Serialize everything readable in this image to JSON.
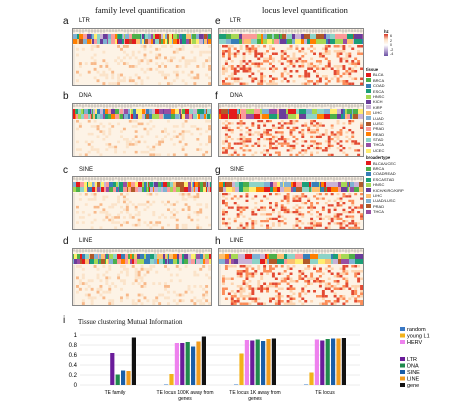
{
  "header": {
    "left_title": "family level quantification",
    "right_title": "locus level quantification"
  },
  "panels": [
    {
      "letter": "a",
      "label": "LTR"
    },
    {
      "letter": "b",
      "label": "DNA"
    },
    {
      "letter": "c",
      "label": "SINE"
    },
    {
      "letter": "d",
      "label": "LINE"
    },
    {
      "letter": "e",
      "label": "LTR"
    },
    {
      "letter": "f",
      "label": "DNA"
    },
    {
      "letter": "g",
      "label": "SINE"
    },
    {
      "letter": "h",
      "label": "LINE"
    }
  ],
  "legend": {
    "lambda_header": "hz",
    "lambda_ticks": [
      "6",
      "2",
      "0",
      "-2",
      "-4"
    ],
    "tissue_header": "tissue",
    "tissue": [
      {
        "name": "BLCA",
        "color": "#e41a1c"
      },
      {
        "name": "BRCA",
        "color": "#4daf4a"
      },
      {
        "name": "COAD",
        "color": "#377eb8"
      },
      {
        "name": "ESCA",
        "color": "#1b9e77"
      },
      {
        "name": "HNSC",
        "color": "#a6d854"
      },
      {
        "name": "KICH",
        "color": "#6a3d9a"
      },
      {
        "name": "KIRP",
        "color": "#cab2d6"
      },
      {
        "name": "LIHC",
        "color": "#fdbf6f"
      },
      {
        "name": "LUAD",
        "color": "#80b1d3"
      },
      {
        "name": "LUSC",
        "color": "#b15928"
      },
      {
        "name": "PRAD",
        "color": "#fb9a99"
      },
      {
        "name": "READ",
        "color": "#ff7f00"
      },
      {
        "name": "STAD",
        "color": "#8dd3c7"
      },
      {
        "name": "THCA",
        "color": "#984ea3"
      },
      {
        "name": "UCEC",
        "color": "#ffed6f"
      }
    ],
    "broad_header": "broadertype",
    "broadertype": [
      {
        "name": "BLCA/UCEC",
        "color": "#e41a1c"
      },
      {
        "name": "BRCA",
        "color": "#4daf4a"
      },
      {
        "name": "COADREAD",
        "color": "#377eb8"
      },
      {
        "name": "ESCASTAD",
        "color": "#1b9e77"
      },
      {
        "name": "HNSC",
        "color": "#a6d854"
      },
      {
        "name": "KICH/KIRC/KIRP",
        "color": "#6a3d9a"
      },
      {
        "name": "LIHC",
        "color": "#fdbf6f"
      },
      {
        "name": "LUAD/LUSC",
        "color": "#80b1d3"
      },
      {
        "name": "PRAD",
        "color": "#b15928"
      },
      {
        "name": "THCA",
        "color": "#984ea3"
      }
    ]
  },
  "panel_i": {
    "letter": "i",
    "title": "Tissue clustering Mutual Information"
  },
  "chart_data": {
    "type": "bar",
    "title": "Tissue clustering Mutual Information",
    "xlabel": "",
    "ylabel": "",
    "ylim": [
      0,
      1
    ],
    "yticks": [
      "0",
      "0.2",
      "0.4",
      "0.6",
      "0.8",
      "1"
    ],
    "grid": true,
    "categories": [
      "TE family",
      "TE locus 100K away from genes",
      "TE locus 1K away from genes",
      "TE locus"
    ],
    "series": [
      {
        "name": "random",
        "color": "#3a78c4",
        "values": [
          0.0,
          0.01,
          0.01,
          0.01
        ]
      },
      {
        "name": "young L1",
        "color": "#f2b21a",
        "values": [
          0.0,
          0.22,
          0.63,
          0.25
        ]
      },
      {
        "name": "HERV",
        "color": "#ee82ee",
        "values": [
          0.0,
          0.84,
          0.9,
          0.91
        ]
      },
      {
        "name": "LTR",
        "color": "#6a1b9a",
        "values": [
          0.64,
          0.84,
          0.89,
          0.89
        ]
      },
      {
        "name": "DNA",
        "color": "#1f8a4c",
        "values": [
          0.21,
          0.86,
          0.91,
          0.92
        ]
      },
      {
        "name": "SINE",
        "color": "#1a5ea8",
        "values": [
          0.29,
          0.77,
          0.88,
          0.93
        ]
      },
      {
        "name": "LINE",
        "color": "#f39c1f",
        "values": [
          0.28,
          0.87,
          0.92,
          0.93
        ]
      },
      {
        "name": "gene",
        "color": "#111111",
        "values": [
          0.95,
          0.97,
          0.93,
          0.94
        ]
      }
    ],
    "category_labels": [
      [
        "TE family"
      ],
      [
        "TE locus 100K away from",
        "genes"
      ],
      [
        "TE locus 1K away from",
        "genes"
      ],
      [
        "TE locus"
      ]
    ],
    "legend_top": [
      "random",
      "young L1",
      "HERV"
    ],
    "legend_bottom": [
      "LTR",
      "DNA",
      "SINE",
      "LINE",
      "gene"
    ],
    "legend_placement": "right"
  }
}
